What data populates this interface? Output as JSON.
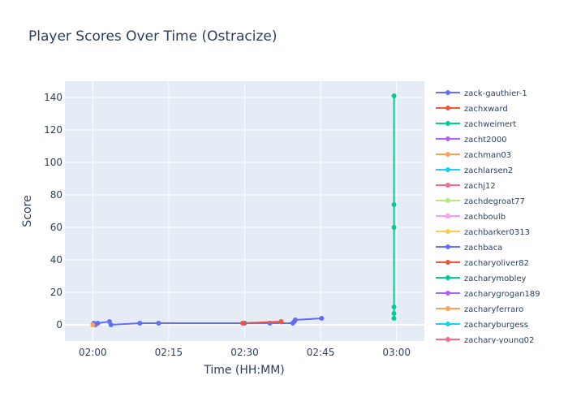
{
  "chart_data": {
    "type": "line",
    "title": "Player Scores Over Time (Ostracize)",
    "xlabel": "Time (HH:MM)",
    "ylabel": "Score",
    "x_domain_minutes": [
      -5.5,
      65.5
    ],
    "ylim": [
      -10,
      150
    ],
    "x_ticks": [
      {
        "label": "02:00",
        "value": 0
      },
      {
        "label": "02:15",
        "value": 15
      },
      {
        "label": "02:30",
        "value": 30
      },
      {
        "label": "02:45",
        "value": 45
      },
      {
        "label": "03:00",
        "value": 60
      }
    ],
    "y_ticks": [
      0,
      20,
      40,
      60,
      80,
      100,
      120,
      140
    ],
    "grid": true,
    "legend_position": "right",
    "series": [
      {
        "name": "zack-gauthier-1",
        "color": "#636efa",
        "points": [
          [
            0.2,
            1
          ],
          [
            0.5,
            0
          ],
          [
            1,
            1
          ],
          [
            3.3,
            2
          ],
          [
            3.6,
            0
          ],
          [
            9.3,
            1
          ],
          [
            13,
            1
          ],
          [
            30,
            1
          ],
          [
            35,
            1
          ],
          [
            39.5,
            1
          ],
          [
            39.8,
            2
          ],
          [
            40,
            3
          ],
          [
            45.2,
            4
          ]
        ]
      },
      {
        "name": "zachxward",
        "color": "#ef553b",
        "points": [
          [
            29.6,
            1
          ],
          [
            37.2,
            2
          ]
        ]
      },
      {
        "name": "zachweimert",
        "color": "#00cc96",
        "points": [
          [
            59.5,
            4
          ],
          [
            59.5,
            7
          ],
          [
            59.5,
            11
          ],
          [
            59.5,
            60
          ],
          [
            59.5,
            74
          ],
          [
            59.5,
            141
          ]
        ]
      },
      {
        "name": "zacht2000",
        "color": "#ab63fa",
        "points": []
      },
      {
        "name": "zachman03",
        "color": "#ffa15a",
        "points": [
          [
            0,
            0
          ]
        ]
      },
      {
        "name": "zachlarsen2",
        "color": "#19d3f3",
        "points": []
      },
      {
        "name": "zachj12",
        "color": "#ff6692",
        "points": []
      },
      {
        "name": "zachdegroat77",
        "color": "#b6e880",
        "points": []
      },
      {
        "name": "zachboulb",
        "color": "#ff97ff",
        "points": []
      },
      {
        "name": "zachbarker0313",
        "color": "#fecb52",
        "points": []
      },
      {
        "name": "zachbaca",
        "color": "#636efa",
        "points": []
      },
      {
        "name": "zacharyoliver82",
        "color": "#ef553b",
        "points": []
      },
      {
        "name": "zacharymobley",
        "color": "#00cc96",
        "points": []
      },
      {
        "name": "zacharygrogan189",
        "color": "#ab63fa",
        "points": []
      },
      {
        "name": "zacharyferraro",
        "color": "#ffa15a",
        "points": []
      },
      {
        "name": "zacharyburgess",
        "color": "#19d3f3",
        "points": []
      },
      {
        "name": "zachary-young02",
        "color": "#ff6692",
        "points": []
      }
    ]
  }
}
